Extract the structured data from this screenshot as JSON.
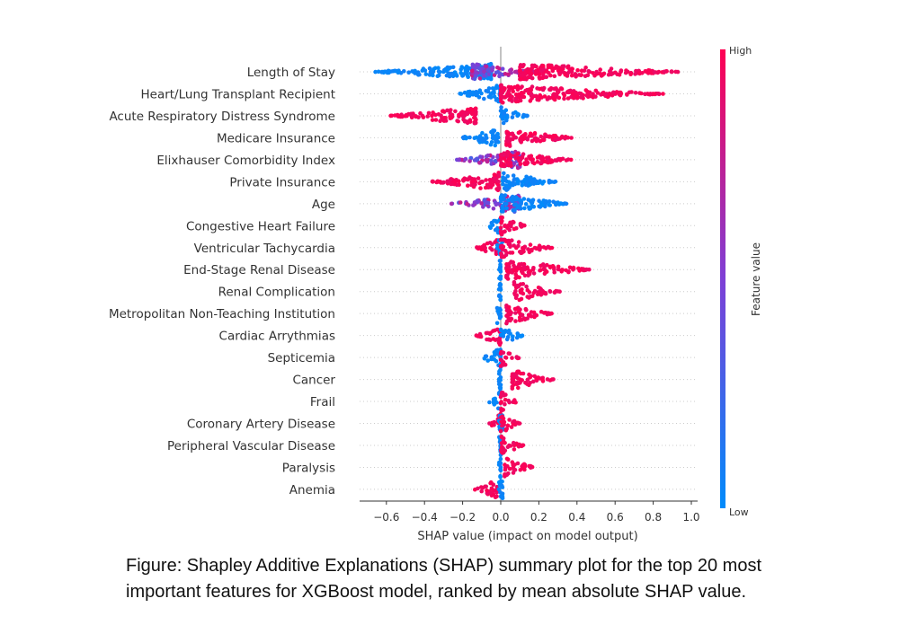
{
  "chart_data": {
    "type": "scatter",
    "subtype": "shap-beeswarm",
    "xlabel": "SHAP value (impact on model output)",
    "xlim": [
      -0.72,
      1.02
    ],
    "xticks": [
      -0.6,
      -0.4,
      -0.2,
      0.0,
      0.2,
      0.4,
      0.6,
      0.8,
      1.0
    ],
    "xtick_labels": [
      "−0.6",
      "−0.4",
      "−0.2",
      "0.0",
      "0.2",
      "0.4",
      "0.6",
      "0.8",
      "1.0"
    ],
    "colorbar": {
      "label": "Feature value",
      "high_label": "High",
      "low_label": "Low",
      "high_color": "#ff0052",
      "low_color": "#008bfb"
    },
    "features": [
      {
        "name": "Length of Stay",
        "clusters": [
          {
            "min": -0.67,
            "max": -0.05,
            "feature_value": "low"
          },
          {
            "min": -0.15,
            "max": 0.2,
            "feature_value": "mixed"
          },
          {
            "min": 0.1,
            "max": 0.94,
            "feature_value": "high"
          }
        ]
      },
      {
        "name": "Heart/Lung Transplant Recipient",
        "clusters": [
          {
            "min": -0.22,
            "max": 0.0,
            "feature_value": "low"
          },
          {
            "min": 0.0,
            "max": 0.86,
            "feature_value": "high"
          }
        ]
      },
      {
        "name": "Acute Respiratory Distress Syndrome",
        "clusters": [
          {
            "min": -0.58,
            "max": -0.13,
            "feature_value": "high"
          },
          {
            "min": 0.0,
            "max": 0.14,
            "feature_value": "low"
          }
        ]
      },
      {
        "name": "Medicare Insurance",
        "clusters": [
          {
            "min": -0.21,
            "max": -0.01,
            "feature_value": "low"
          },
          {
            "min": 0.03,
            "max": 0.38,
            "feature_value": "high"
          }
        ]
      },
      {
        "name": "Elixhauser Comorbidity Index",
        "clusters": [
          {
            "min": -0.23,
            "max": 0.1,
            "feature_value": "mixed"
          },
          {
            "min": 0.0,
            "max": 0.37,
            "feature_value": "high"
          }
        ]
      },
      {
        "name": "Private Insurance",
        "clusters": [
          {
            "min": -0.37,
            "max": -0.01,
            "feature_value": "high"
          },
          {
            "min": 0.01,
            "max": 0.29,
            "feature_value": "low"
          }
        ]
      },
      {
        "name": "Age",
        "clusters": [
          {
            "min": -0.26,
            "max": 0.1,
            "feature_value": "mixed"
          },
          {
            "min": 0.0,
            "max": 0.35,
            "feature_value": "low"
          }
        ]
      },
      {
        "name": "Congestive Heart Failure",
        "clusters": [
          {
            "min": -0.07,
            "max": 0.0,
            "feature_value": "low"
          },
          {
            "min": 0.0,
            "max": 0.13,
            "feature_value": "high"
          }
        ]
      },
      {
        "name": "Ventricular Tachycardia",
        "clusters": [
          {
            "min": -0.13,
            "max": 0.0,
            "feature_value": "high"
          },
          {
            "min": -0.02,
            "max": 0.01,
            "feature_value": "low"
          },
          {
            "min": 0.0,
            "max": 0.28,
            "feature_value": "high"
          }
        ]
      },
      {
        "name": "End-Stage Renal Disease",
        "clusters": [
          {
            "min": -0.01,
            "max": 0.0,
            "feature_value": "low"
          },
          {
            "min": 0.03,
            "max": 0.47,
            "feature_value": "high"
          }
        ]
      },
      {
        "name": "Renal Complication",
        "clusters": [
          {
            "min": -0.01,
            "max": 0.0,
            "feature_value": "low"
          },
          {
            "min": 0.07,
            "max": 0.31,
            "feature_value": "high"
          }
        ]
      },
      {
        "name": "Metropolitan Non-Teaching Institution",
        "clusters": [
          {
            "min": -0.02,
            "max": 0.0,
            "feature_value": "low"
          },
          {
            "min": 0.03,
            "max": 0.27,
            "feature_value": "high"
          }
        ]
      },
      {
        "name": "Cardiac Arrythmias",
        "clusters": [
          {
            "min": -0.13,
            "max": 0.0,
            "feature_value": "high"
          },
          {
            "min": 0.0,
            "max": 0.12,
            "feature_value": "low"
          }
        ]
      },
      {
        "name": "Septicemia",
        "clusters": [
          {
            "min": -0.1,
            "max": 0.0,
            "feature_value": "low"
          },
          {
            "min": 0.0,
            "max": 0.1,
            "feature_value": "high"
          }
        ]
      },
      {
        "name": "Cancer",
        "clusters": [
          {
            "min": -0.01,
            "max": 0.0,
            "feature_value": "low"
          },
          {
            "min": 0.06,
            "max": 0.28,
            "feature_value": "high"
          }
        ]
      },
      {
        "name": "Frail",
        "clusters": [
          {
            "min": -0.07,
            "max": 0.0,
            "feature_value": "low"
          },
          {
            "min": 0.0,
            "max": 0.09,
            "feature_value": "high"
          }
        ]
      },
      {
        "name": "Coronary Artery Disease",
        "clusters": [
          {
            "min": -0.06,
            "max": 0.0,
            "feature_value": "high"
          },
          {
            "min": -0.01,
            "max": 0.01,
            "feature_value": "low"
          },
          {
            "min": 0.0,
            "max": 0.1,
            "feature_value": "high"
          }
        ]
      },
      {
        "name": "Peripheral Vascular Disease",
        "clusters": [
          {
            "min": -0.01,
            "max": 0.0,
            "feature_value": "low"
          },
          {
            "min": 0.0,
            "max": 0.12,
            "feature_value": "high"
          }
        ]
      },
      {
        "name": "Paralysis",
        "clusters": [
          {
            "min": -0.01,
            "max": 0.0,
            "feature_value": "low"
          },
          {
            "min": 0.02,
            "max": 0.18,
            "feature_value": "high"
          }
        ]
      },
      {
        "name": "Anemia",
        "clusters": [
          {
            "min": -0.14,
            "max": -0.02,
            "feature_value": "high"
          },
          {
            "min": -0.01,
            "max": 0.01,
            "feature_value": "low"
          }
        ]
      }
    ]
  },
  "caption": {
    "line1": "Figure: Shapley Additive Explanations (SHAP) summary plot for the top 20 most",
    "line2": "important features for XGBoost model, ranked by mean absolute SHAP value."
  }
}
